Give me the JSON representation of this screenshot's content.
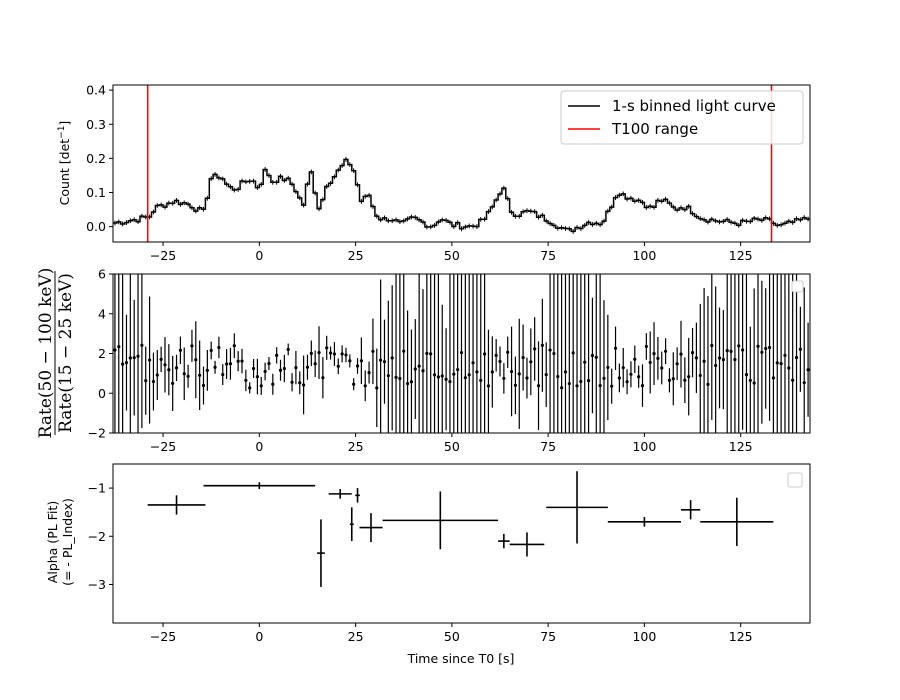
{
  "colors": {
    "curve": "#000000",
    "t100": "#ff0000",
    "background": "#ffffff"
  },
  "chart_data": [
    {
      "type": "line",
      "panel": "light-curve",
      "ylabel": "Count [det$^{-1}$]",
      "ylabel_main": "Count [det",
      "ylabel_sup": "−1",
      "ylabel_end": "]",
      "xlim": [
        -38,
        143
      ],
      "ylim": [
        -0.045,
        0.415
      ],
      "xticks": [
        -25,
        0,
        25,
        50,
        75,
        100,
        125
      ],
      "xtick_labels": [
        "−25",
        "0",
        "25",
        "50",
        "75",
        "100",
        "125"
      ],
      "yticks": [
        0.0,
        0.1,
        0.2,
        0.3,
        0.4
      ],
      "ytick_labels": [
        "0.0",
        "0.1",
        "0.2",
        "0.3",
        "0.4"
      ],
      "legend_position": "top-right",
      "legend": [
        "1-s binned light curve",
        "T100 range"
      ],
      "t100_range": [
        -29,
        133
      ],
      "anchors": [
        [
          -38,
          0.01
        ],
        [
          -30,
          0.025
        ],
        [
          -28.5,
          0.03
        ],
        [
          -27,
          0.055
        ],
        [
          -22,
          0.075
        ],
        [
          -18,
          0.065
        ],
        [
          -16,
          0.05
        ],
        [
          -14,
          0.04
        ],
        [
          -13,
          0.14
        ],
        [
          -10,
          0.15
        ],
        [
          -8,
          0.115
        ],
        [
          -6,
          0.11
        ],
        [
          -4,
          0.13
        ],
        [
          -2,
          0.14
        ],
        [
          0,
          0.11
        ],
        [
          1,
          0.15
        ],
        [
          2,
          0.175
        ],
        [
          3,
          0.13
        ],
        [
          5,
          0.14
        ],
        [
          7,
          0.14
        ],
        [
          9,
          0.12
        ],
        [
          11,
          0.07
        ],
        [
          12,
          0.06
        ],
        [
          13,
          0.18
        ],
        [
          14,
          0.135
        ],
        [
          15,
          0.075
        ],
        [
          16,
          0.04
        ],
        [
          17,
          0.12
        ],
        [
          19,
          0.14
        ],
        [
          21,
          0.17
        ],
        [
          23,
          0.195
        ],
        [
          25,
          0.155
        ],
        [
          26,
          0.09
        ],
        [
          27,
          0.06
        ],
        [
          28,
          0.105
        ],
        [
          29,
          0.08
        ],
        [
          30,
          0.04
        ],
        [
          32,
          0.02
        ],
        [
          34,
          0.025
        ],
        [
          37,
          0.005
        ],
        [
          40,
          0.025
        ],
        [
          45,
          0.0
        ],
        [
          47,
          0.025
        ],
        [
          50,
          0.005
        ],
        [
          55,
          0.0
        ],
        [
          58,
          0.015
        ],
        [
          60,
          0.045
        ],
        [
          62,
          0.09
        ],
        [
          63,
          0.115
        ],
        [
          64,
          0.1
        ],
        [
          65,
          0.05
        ],
        [
          67,
          0.035
        ],
        [
          70,
          0.045
        ],
        [
          73,
          0.03
        ],
        [
          76,
          0.015
        ],
        [
          80,
          -0.015
        ],
        [
          83,
          0.0
        ],
        [
          86,
          0.015
        ],
        [
          89,
          0.01
        ],
        [
          91,
          0.05
        ],
        [
          93,
          0.105
        ],
        [
          95,
          0.09
        ],
        [
          98,
          0.08
        ],
        [
          100,
          0.07
        ],
        [
          102,
          0.05
        ],
        [
          104,
          0.08
        ],
        [
          106,
          0.07
        ],
        [
          108,
          0.05
        ],
        [
          110,
          0.06
        ],
        [
          112,
          0.05
        ],
        [
          115,
          0.025
        ],
        [
          120,
          0.015
        ],
        [
          125,
          0.01
        ],
        [
          130,
          0.02
        ],
        [
          133,
          0.015
        ],
        [
          135,
          0.0
        ],
        [
          138,
          0.01
        ],
        [
          143,
          0.025
        ]
      ]
    },
    {
      "type": "scatter",
      "panel": "hardness-ratio",
      "ylabel_numerator": "Rate(50 − 100 keV)",
      "ylabel_denominator": "Rate(15 − 25 keV)",
      "xlim": [
        -38,
        143
      ],
      "ylim": [
        -2,
        6
      ],
      "xticks": [
        -25,
        0,
        25,
        50,
        75,
        100,
        125
      ],
      "xtick_labels": [
        "−25",
        "0",
        "25",
        "50",
        "75",
        "100",
        "125"
      ],
      "yticks": [
        -2,
        0,
        2,
        4,
        6
      ],
      "ytick_labels": [
        "−2",
        "0",
        "2",
        "4",
        "6"
      ],
      "legend_position": "top-right",
      "error_scale": 1.2
    },
    {
      "type": "scatter",
      "panel": "alpha",
      "ylabel_line1": "Alpha (PL Fit)",
      "ylabel_line2": "(= - PL_Index)",
      "xlabel": "Time since T0 [s]",
      "xlim": [
        -38,
        143
      ],
      "ylim": [
        -3.8,
        -0.5
      ],
      "xticks": [
        -25,
        0,
        25,
        50,
        75,
        100,
        125
      ],
      "xtick_labels": [
        "−25",
        "0",
        "25",
        "50",
        "75",
        "100",
        "125"
      ],
      "yticks": [
        -3,
        -2,
        -1
      ],
      "ytick_labels": [
        "−3",
        "−2",
        "−1"
      ],
      "legend_position": "top-right",
      "points": [
        {
          "x": -21.5,
          "xerr": 7.5,
          "y": -1.35,
          "yerr": 0.2
        },
        {
          "x": 0,
          "xerr": 14.5,
          "y": -0.95,
          "yerr": 0.07
        },
        {
          "x": 16,
          "xerr": 1.0,
          "y": -2.35,
          "yerr": 0.7
        },
        {
          "x": 21,
          "xerr": 3.0,
          "y": -1.12,
          "yerr": 0.1
        },
        {
          "x": 24,
          "xerr": 0.5,
          "y": -1.75,
          "yerr": 0.35
        },
        {
          "x": 25.5,
          "xerr": 0.6,
          "y": -1.15,
          "yerr": 0.15
        },
        {
          "x": 29,
          "xerr": 3.0,
          "y": -1.82,
          "yerr": 0.3
        },
        {
          "x": 47,
          "xerr": 15.0,
          "y": -1.67,
          "yerr": 0.6
        },
        {
          "x": 63.5,
          "xerr": 1.5,
          "y": -2.1,
          "yerr": 0.15
        },
        {
          "x": 69.5,
          "xerr": 4.5,
          "y": -2.17,
          "yerr": 0.25
        },
        {
          "x": 82.5,
          "xerr": 8.0,
          "y": -1.4,
          "yerr": 0.75
        },
        {
          "x": 100,
          "xerr": 9.5,
          "y": -1.7,
          "yerr": 0.1
        },
        {
          "x": 112,
          "xerr": 2.5,
          "y": -1.45,
          "yerr": 0.2
        },
        {
          "x": 124,
          "xerr": 9.5,
          "y": -1.7,
          "yerr": 0.5
        }
      ]
    }
  ]
}
